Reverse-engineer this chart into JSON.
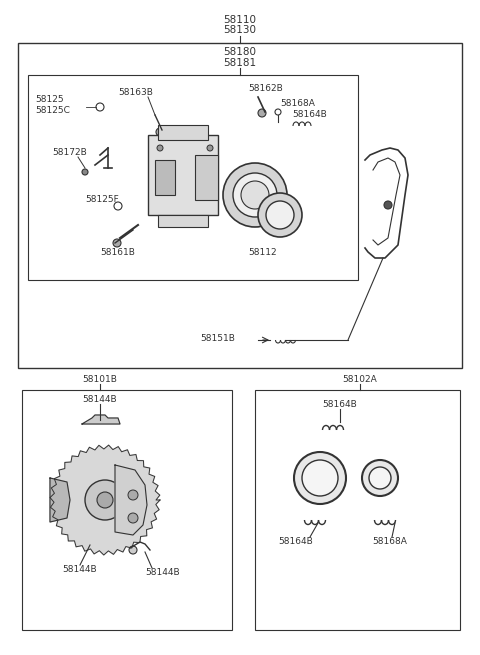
{
  "bg_color": "#ffffff",
  "line_color": "#333333",
  "text_color": "#333333",
  "figsize": [
    4.8,
    6.55
  ],
  "dpi": 100,
  "labels": {
    "top1": "58110",
    "top2": "58130",
    "outer_top1": "58180",
    "outer_top2": "58181",
    "lbl_58125": "58125",
    "lbl_58125C": "58125C",
    "lbl_58163B": "58163B",
    "lbl_58172B": "58172B",
    "lbl_58125F": "58125F",
    "lbl_58161B": "58161B",
    "lbl_58112": "58112",
    "lbl_58162B": "58162B",
    "lbl_58168A_top": "58168A",
    "lbl_58164B_top": "58164B",
    "lbl_58151B": "58151B",
    "lbl_58101B": "58101B",
    "lbl_58144B_top": "58144B",
    "lbl_58144B_bl": "58144B",
    "lbl_58144B_br": "58144B",
    "lbl_58102A": "58102A",
    "lbl_58164B_box2": "58164B",
    "lbl_58164B_box2b": "58164B",
    "lbl_58168A_box2": "58168A"
  },
  "font_size_label": 6.5,
  "font_size_top": 7.5
}
